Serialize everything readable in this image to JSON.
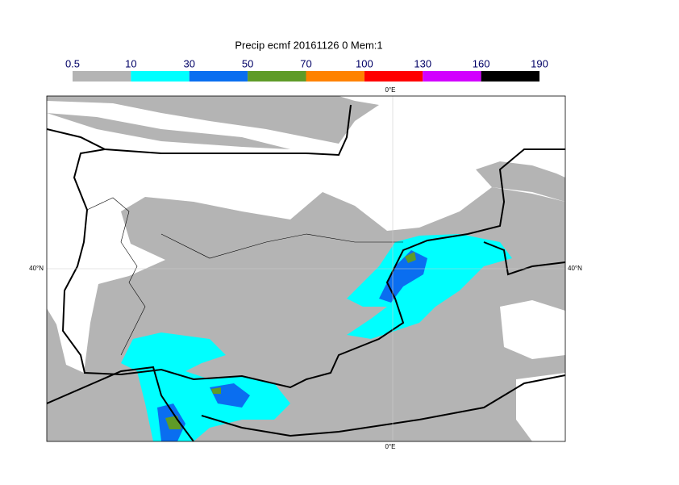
{
  "title": "Precip ecmf 20161126 0 Mem:1",
  "colorbar": {
    "levels": [
      0.5,
      10,
      30,
      50,
      70,
      100,
      130,
      160,
      190
    ],
    "colors": [
      "#b4b4b4",
      "#00ffff",
      "#0a6ef0",
      "#5f9b28",
      "#ff8200",
      "#ff0000",
      "#d200ff",
      "#000000"
    ]
  },
  "map": {
    "lon_label_top": "0°E",
    "lon_label_bottom": "0°E",
    "lat_label_left": "40°N",
    "lat_label_right": "40°N"
  }
}
